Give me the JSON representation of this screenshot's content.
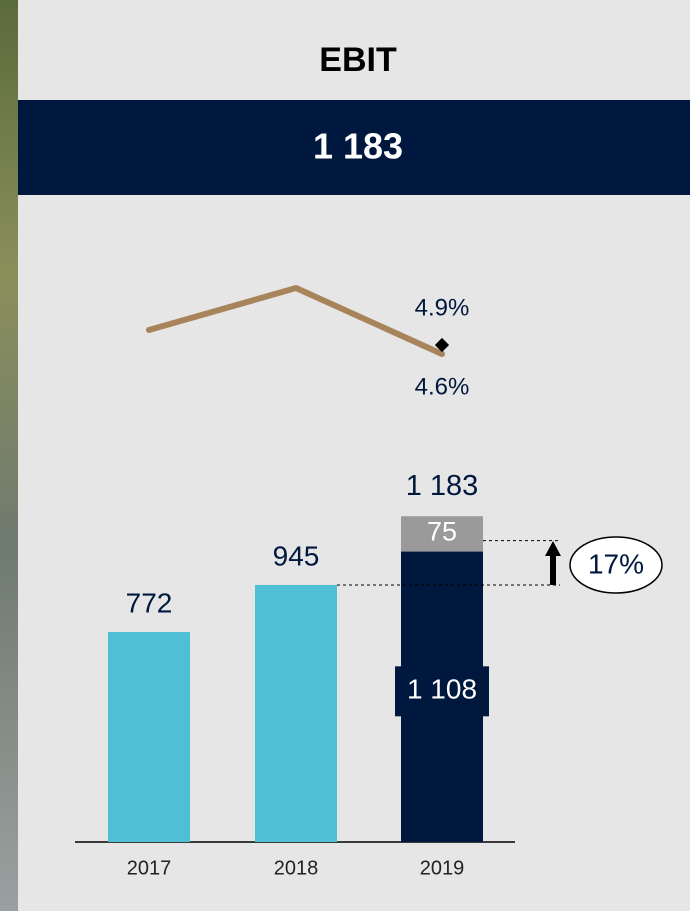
{
  "header": {
    "title": "EBIT",
    "value": "1 183"
  },
  "chart_data": {
    "type": "bar",
    "categories": [
      "2017",
      "2018",
      "2019"
    ],
    "ylim": [
      0,
      1200
    ],
    "series": [
      {
        "colors": [
          "#4fbfd4",
          "#4fbfd4",
          "#00183d"
        ],
        "values": [
          772,
          945,
          1108
        ],
        "value_labels": [
          "772",
          "945",
          "1 108"
        ]
      },
      {
        "color": "#9a9a9a",
        "values": [
          null,
          null,
          75
        ],
        "value_labels": [
          null,
          null,
          "75"
        ]
      }
    ],
    "total": 1183,
    "total_label": "1 183",
    "growth_label": "17%",
    "line": {
      "color": "#a8845a",
      "values": [
        5.4,
        6.8,
        4.6
      ],
      "value_labels": [
        null,
        null,
        "4.6%"
      ],
      "y2lim": [
        3.5,
        7.5
      ],
      "target": {
        "value": 4.9,
        "label": "4.9%",
        "color": "#000000"
      }
    }
  }
}
